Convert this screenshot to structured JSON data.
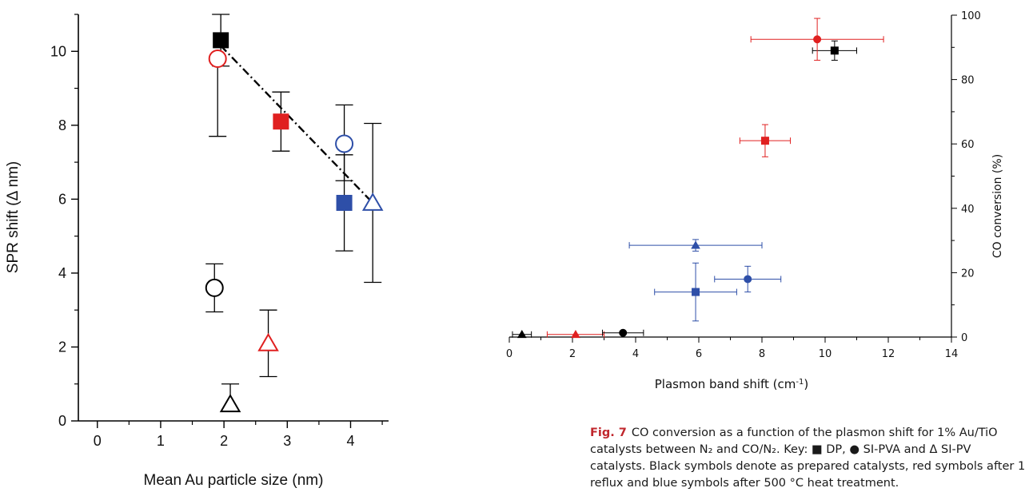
{
  "chart_data": [
    {
      "type": "scatter",
      "title": "",
      "xlabel": "Mean Au particle size (nm)",
      "ylabel": "SPR shift (Δ nm)",
      "xlim": [
        -0.3,
        4.6
      ],
      "ylim": [
        0,
        11
      ],
      "x_ticks": [
        0,
        1,
        2,
        3,
        4
      ],
      "y_ticks": [
        0,
        2,
        4,
        6,
        8,
        10
      ],
      "grid": false,
      "points": [
        {
          "x": 1.95,
          "y": 10.3,
          "yerr_low": 0.7,
          "yerr_high": 0.7,
          "color": "#000000",
          "marker": "square",
          "filled": true
        },
        {
          "x": 2.9,
          "y": 8.1,
          "yerr_low": 0.8,
          "yerr_high": 0.8,
          "color": "#e02020",
          "marker": "square",
          "filled": true
        },
        {
          "x": 3.9,
          "y": 5.9,
          "yerr_low": 1.3,
          "yerr_high": 1.3,
          "color": "#2e4fa8",
          "marker": "square",
          "filled": true
        },
        {
          "x": 1.9,
          "y": 9.8,
          "yerr_low": 2.1,
          "yerr_high": 0,
          "color": "#e02020",
          "marker": "circle",
          "filled": false
        },
        {
          "x": 3.9,
          "y": 7.5,
          "yerr_low": 1.0,
          "yerr_high": 1.05,
          "color": "#2e4fa8",
          "marker": "circle",
          "filled": false
        },
        {
          "x": 1.85,
          "y": 3.6,
          "yerr_low": 0.65,
          "yerr_high": 0.65,
          "color": "#000000",
          "marker": "circle",
          "filled": false
        },
        {
          "x": 2.7,
          "y": 2.1,
          "yerr_low": 0.9,
          "yerr_high": 0.9,
          "color": "#e02020",
          "marker": "triangle",
          "filled": false
        },
        {
          "x": 2.1,
          "y": 0.45,
          "yerr_low": 0,
          "yerr_high": 0.55,
          "color": "#000000",
          "marker": "triangle",
          "filled": false
        },
        {
          "x": 4.35,
          "y": 5.9,
          "yerr_low": 2.15,
          "yerr_high": 2.15,
          "color": "#2e4fa8",
          "marker": "triangle",
          "filled": false
        }
      ],
      "trendline": {
        "x": [
          1.95,
          4.35
        ],
        "y": [
          10.15,
          5.9
        ],
        "style": "dash-dot",
        "color": "#000000"
      }
    },
    {
      "type": "scatter",
      "title": "",
      "xlabel": "Plasmon band shift (cm",
      "xlabel_sup": "-1",
      "xlabel_end": ")",
      "ylabel": "CO conversion (%)",
      "xlim": [
        0,
        14
      ],
      "ylim": [
        0,
        100
      ],
      "x_ticks": [
        0,
        2,
        4,
        6,
        8,
        10,
        12,
        14
      ],
      "y_ticks": [
        0,
        20,
        40,
        60,
        80,
        100
      ],
      "grid": false,
      "points": [
        {
          "x": 10.3,
          "y": 89,
          "xerr": 0.7,
          "yerr": 3,
          "color": "#000000",
          "marker": "square"
        },
        {
          "x": 9.75,
          "y": 92.5,
          "xerr": 2.1,
          "yerr": 6.5,
          "color": "#e02020",
          "marker": "circle"
        },
        {
          "x": 8.1,
          "y": 61,
          "xerr": 0.8,
          "yerr": 5,
          "color": "#e02020",
          "marker": "square"
        },
        {
          "x": 5.9,
          "y": 28.5,
          "xerr": 2.1,
          "yerr": 1.8,
          "color": "#2e4fa8",
          "marker": "triangle"
        },
        {
          "x": 7.55,
          "y": 18,
          "xerr": 1.05,
          "yerr": 4,
          "color": "#2e4fa8",
          "marker": "circle"
        },
        {
          "x": 5.9,
          "y": 14,
          "xerr": 1.3,
          "yerr": 9,
          "color": "#2e4fa8",
          "marker": "square"
        },
        {
          "x": 0.4,
          "y": 0.8,
          "xerr": 0.3,
          "yerr": 0,
          "color": "#000000",
          "marker": "triangle"
        },
        {
          "x": 2.1,
          "y": 0.8,
          "xerr": 0.9,
          "yerr": 0,
          "color": "#e02020",
          "marker": "triangle"
        },
        {
          "x": 3.6,
          "y": 1.3,
          "xerr": 0.65,
          "yerr": 0,
          "color": "#000000",
          "marker": "circle"
        }
      ]
    }
  ],
  "caption": {
    "label": "Fig. 7",
    "lines": [
      "CO conversion as a function of the plasmon shift for 1% Au/TiO",
      "catalysts between N₂ and CO/N₂. Key: ■ DP, ● SI-PVA and Δ SI-PV",
      "catalysts. Black symbols denote as prepared catalysts, red symbols after 1",
      "reflux and blue symbols after 500 °C heat treatment."
    ]
  }
}
